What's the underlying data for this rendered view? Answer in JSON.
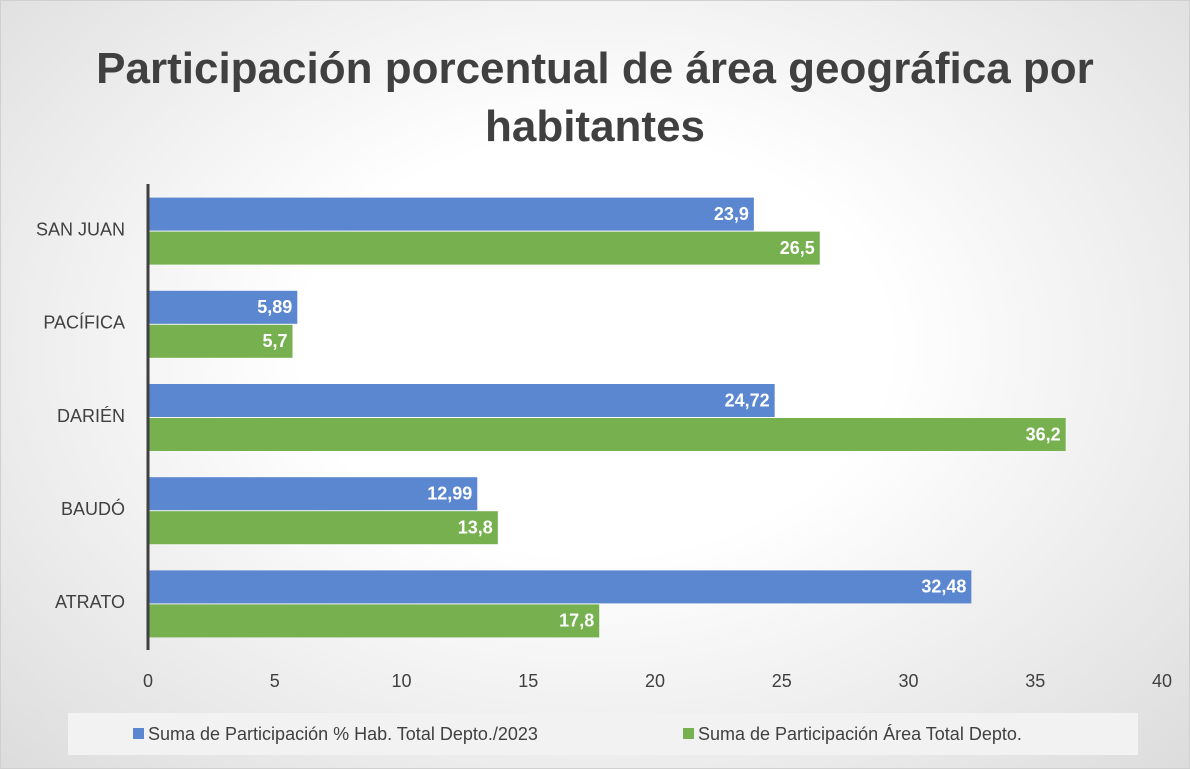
{
  "chart_data": {
    "type": "hbar",
    "title": "Participación porcentual de área geográfica por habitantes",
    "categories": [
      "SAN JUAN",
      "PACÍFICA",
      "DARIÉN",
      "BAUDÓ",
      "ATRATO"
    ],
    "series": [
      {
        "name": "Suma de Participación % Hab. Total Depto./2023",
        "color": "#5b86d0",
        "values": [
          23.9,
          5.89,
          24.72,
          12.99,
          32.48
        ],
        "value_labels": [
          "23,9",
          "5,89",
          "24,72",
          "12,99",
          "32,48"
        ]
      },
      {
        "name": "Suma de Participación Área Total Depto.",
        "color": "#76b04f",
        "values": [
          26.5,
          5.7,
          36.2,
          13.8,
          17.8
        ],
        "value_labels": [
          "26,5",
          "5,7",
          "36,2",
          "13,8",
          "17,8"
        ]
      }
    ],
    "xlim": [
      0,
      40
    ],
    "xticks": [
      0,
      5,
      10,
      15,
      20,
      25,
      30,
      35,
      40
    ],
    "grid": false,
    "legend": "bottom"
  }
}
